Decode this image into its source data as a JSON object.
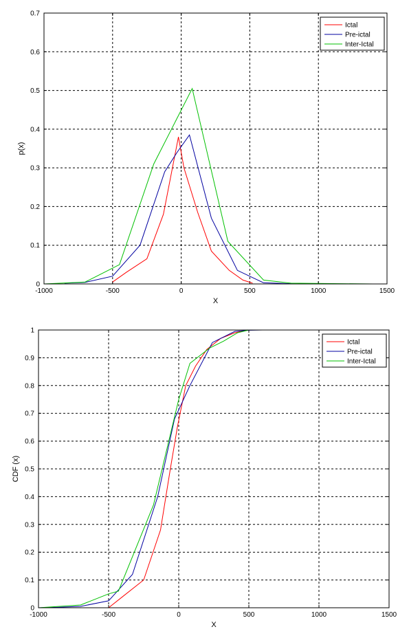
{
  "chart_data": [
    {
      "type": "line",
      "xlabel": "X",
      "ylabel": "p(x)",
      "xlim": [
        -1000,
        1500
      ],
      "ylim": [
        0,
        0.7
      ],
      "xticks": [
        -1000,
        -500,
        0,
        500,
        1000,
        1500
      ],
      "xtick_labels": [
        "-1000",
        "-500",
        "0",
        "500",
        "1000",
        "1500"
      ],
      "yticks": [
        0,
        0.1,
        0.2,
        0.3,
        0.4,
        0.5,
        0.6,
        0.7
      ],
      "ytick_labels": [
        "0",
        "0.1",
        "0.2",
        "0.3",
        "0.4",
        "0.5",
        "0.6",
        "0.7"
      ],
      "grid": true,
      "legend": "top-right",
      "series": [
        {
          "name": "Ictal",
          "color": "#ff0000",
          "x": [
            -500,
            -400,
            -250,
            -130,
            -20,
            20,
            120,
            220,
            350,
            450,
            520
          ],
          "y": [
            0.005,
            0.03,
            0.065,
            0.18,
            0.38,
            0.3,
            0.185,
            0.085,
            0.035,
            0.01,
            0.002
          ]
        },
        {
          "name": "Pre-ictal",
          "color": "#0000a0",
          "x": [
            -850,
            -700,
            -500,
            -300,
            -120,
            -30,
            60,
            220,
            410,
            600,
            750,
            850
          ],
          "y": [
            0.002,
            0.004,
            0.02,
            0.1,
            0.29,
            0.34,
            0.385,
            0.17,
            0.035,
            0.003,
            0.001,
            0.0
          ]
        },
        {
          "name": "Inter-Ictal",
          "color": "#00c000",
          "x": [
            -1000,
            -700,
            -450,
            -200,
            80,
            340,
            600,
            800,
            1400
          ],
          "y": [
            0.0,
            0.005,
            0.05,
            0.31,
            0.505,
            0.11,
            0.01,
            0.002,
            0.0
          ]
        }
      ]
    },
    {
      "type": "line",
      "xlabel": "X",
      "ylabel": "CDF (x)",
      "xlim": [
        -1000,
        1500
      ],
      "ylim": [
        0,
        1
      ],
      "xticks": [
        -1000,
        -500,
        0,
        500,
        1000,
        1500
      ],
      "xtick_labels": [
        "-1000",
        "-500",
        "0",
        "500",
        "1000",
        "1500"
      ],
      "yticks": [
        0,
        0.1,
        0.2,
        0.3,
        0.4,
        0.5,
        0.6,
        0.7,
        0.8,
        0.9,
        1
      ],
      "ytick_labels": [
        "0",
        "0.1",
        "0.2",
        "0.3",
        "0.4",
        "0.5",
        "0.6",
        "0.7",
        "0.8",
        "0.9",
        "1"
      ],
      "grid": true,
      "legend": "top-right",
      "series": [
        {
          "name": "Ictal",
          "color": "#ff0000",
          "x": [
            -500,
            -400,
            -250,
            -130,
            -60,
            -10,
            50,
            120,
            200,
            300,
            400,
            500,
            550
          ],
          "y": [
            0.0,
            0.04,
            0.1,
            0.28,
            0.5,
            0.65,
            0.8,
            0.87,
            0.93,
            0.97,
            0.99,
            1.0,
            1.0
          ]
        },
        {
          "name": "Pre-ictal",
          "color": "#0000a0",
          "x": [
            -1000,
            -850,
            -700,
            -500,
            -330,
            -150,
            -30,
            80,
            240,
            400,
            500,
            600
          ],
          "y": [
            0.0,
            0.002,
            0.005,
            0.025,
            0.12,
            0.4,
            0.68,
            0.8,
            0.955,
            0.995,
            0.999,
            1.0
          ]
        },
        {
          "name": "Inter-Ictal",
          "color": "#00c000",
          "x": [
            -1000,
            -700,
            -500,
            -430,
            -180,
            0,
            80,
            220,
            320,
            420,
            500,
            600,
            1400
          ],
          "y": [
            0.0,
            0.01,
            0.05,
            0.06,
            0.37,
            0.75,
            0.88,
            0.935,
            0.96,
            0.99,
            1.0,
            1.0,
            1.0
          ]
        }
      ]
    }
  ]
}
